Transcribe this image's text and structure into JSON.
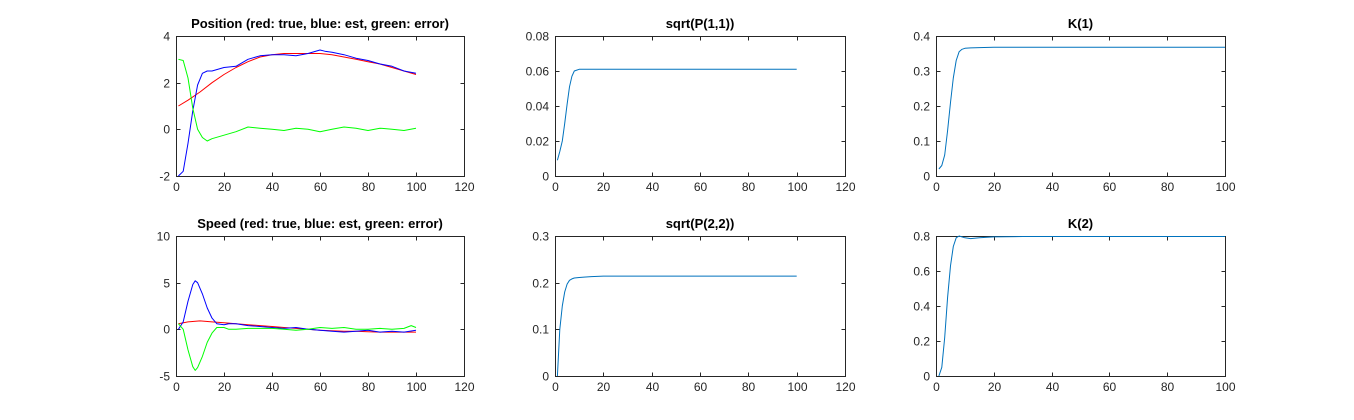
{
  "chart_data": [
    {
      "type": "line",
      "title": "Position (red: true, blue: est, green: error)",
      "xlim": [
        0,
        120
      ],
      "ylim": [
        -2,
        4
      ],
      "xticks": [
        0,
        20,
        40,
        60,
        80,
        100,
        120
      ],
      "yticks": [
        -2,
        0,
        2,
        4
      ],
      "series": [
        {
          "color": "#ff0000",
          "x": [
            1,
            5,
            10,
            15,
            20,
            25,
            30,
            35,
            40,
            45,
            50,
            55,
            60,
            65,
            70,
            75,
            80,
            85,
            90,
            95,
            100
          ],
          "y": [
            1.0,
            1.25,
            1.6,
            2.0,
            2.35,
            2.65,
            2.9,
            3.1,
            3.2,
            3.25,
            3.25,
            3.25,
            3.25,
            3.2,
            3.1,
            3.0,
            2.9,
            2.8,
            2.65,
            2.5,
            2.35
          ]
        },
        {
          "color": "#0000ff",
          "x": [
            1,
            3,
            5,
            7,
            9,
            11,
            13,
            15,
            20,
            25,
            30,
            35,
            40,
            45,
            50,
            55,
            60,
            62,
            65,
            70,
            75,
            80,
            85,
            90,
            95,
            100
          ],
          "y": [
            -2.0,
            -1.8,
            -0.6,
            0.8,
            1.9,
            2.4,
            2.5,
            2.5,
            2.65,
            2.7,
            3.0,
            3.15,
            3.2,
            3.2,
            3.15,
            3.25,
            3.4,
            3.35,
            3.3,
            3.2,
            3.05,
            2.95,
            2.8,
            2.7,
            2.5,
            2.4
          ]
        },
        {
          "color": "#00ff00",
          "x": [
            1,
            3,
            5,
            7,
            9,
            11,
            13,
            15,
            20,
            25,
            30,
            35,
            40,
            45,
            50,
            55,
            60,
            65,
            70,
            75,
            80,
            85,
            90,
            95,
            100
          ],
          "y": [
            3.0,
            2.95,
            2.2,
            0.9,
            0.0,
            -0.35,
            -0.5,
            -0.4,
            -0.25,
            -0.1,
            0.1,
            0.05,
            0.0,
            -0.05,
            0.05,
            0.0,
            -0.1,
            0.0,
            0.1,
            0.05,
            -0.05,
            0.05,
            0.0,
            -0.05,
            0.05
          ]
        }
      ]
    },
    {
      "type": "line",
      "title": "sqrt(P(1,1))",
      "xlim": [
        0,
        120
      ],
      "ylim": [
        0,
        0.08
      ],
      "xticks": [
        0,
        20,
        40,
        60,
        80,
        100,
        120
      ],
      "yticks": [
        0,
        0.02,
        0.04,
        0.06,
        0.08
      ],
      "series": [
        {
          "color": "#0072bd",
          "x": [
            1,
            2,
            3,
            4,
            5,
            6,
            7,
            8,
            9,
            10,
            12,
            15,
            20,
            30,
            50,
            70,
            100
          ],
          "y": [
            0.009,
            0.014,
            0.02,
            0.03,
            0.041,
            0.051,
            0.057,
            0.06,
            0.0605,
            0.061,
            0.061,
            0.061,
            0.061,
            0.061,
            0.061,
            0.061,
            0.061
          ]
        }
      ]
    },
    {
      "type": "line",
      "title": "K(1)",
      "xlim": [
        0,
        100
      ],
      "ylim": [
        0,
        0.4
      ],
      "xticks": [
        0,
        20,
        40,
        60,
        80,
        100
      ],
      "yticks": [
        0,
        0.1,
        0.2,
        0.3,
        0.4
      ],
      "series": [
        {
          "color": "#0072bd",
          "x": [
            1,
            2,
            3,
            4,
            5,
            6,
            7,
            8,
            9,
            10,
            12,
            15,
            20,
            30,
            50,
            70,
            100
          ],
          "y": [
            0.02,
            0.03,
            0.06,
            0.13,
            0.21,
            0.28,
            0.33,
            0.355,
            0.362,
            0.365,
            0.366,
            0.367,
            0.368,
            0.368,
            0.368,
            0.368,
            0.368
          ]
        }
      ]
    },
    {
      "type": "line",
      "title": "Speed (red: true, blue: est, green: error)",
      "xlim": [
        0,
        120
      ],
      "ylim": [
        -5,
        10
      ],
      "xticks": [
        0,
        20,
        40,
        60,
        80,
        100,
        120
      ],
      "yticks": [
        -5,
        0,
        5,
        10
      ],
      "series": [
        {
          "color": "#ff0000",
          "x": [
            1,
            5,
            10,
            15,
            20,
            25,
            30,
            35,
            40,
            45,
            50,
            55,
            60,
            65,
            70,
            75,
            80,
            85,
            90,
            95,
            100
          ],
          "y": [
            0.6,
            0.8,
            0.9,
            0.8,
            0.7,
            0.6,
            0.5,
            0.4,
            0.3,
            0.2,
            0.1,
            0.0,
            -0.1,
            -0.15,
            -0.2,
            -0.2,
            -0.25,
            -0.3,
            -0.3,
            -0.3,
            -0.3
          ]
        },
        {
          "color": "#0000ff",
          "x": [
            1,
            3,
            5,
            7,
            8,
            9,
            11,
            13,
            15,
            17,
            20,
            22,
            25,
            30,
            35,
            40,
            45,
            50,
            55,
            60,
            65,
            70,
            75,
            80,
            85,
            90,
            95,
            100
          ],
          "y": [
            0.0,
            0.8,
            3.0,
            4.8,
            5.2,
            5.0,
            3.8,
            2.3,
            1.2,
            0.6,
            0.5,
            0.6,
            0.6,
            0.4,
            0.3,
            0.2,
            0.1,
            0.2,
            0.0,
            -0.1,
            -0.2,
            -0.3,
            -0.2,
            -0.1,
            -0.3,
            -0.2,
            -0.3,
            -0.1
          ]
        },
        {
          "color": "#00ff00",
          "x": [
            1,
            3,
            5,
            7,
            8,
            9,
            11,
            13,
            15,
            17,
            20,
            22,
            25,
            30,
            35,
            40,
            45,
            50,
            55,
            60,
            65,
            70,
            75,
            80,
            85,
            90,
            95,
            98,
            100
          ],
          "y": [
            0.6,
            0.0,
            -2.2,
            -4.0,
            -4.4,
            -4.1,
            -2.9,
            -1.4,
            -0.4,
            0.2,
            0.2,
            0.0,
            0.0,
            0.1,
            0.1,
            0.1,
            0.0,
            -0.1,
            0.0,
            0.2,
            0.1,
            0.2,
            0.0,
            0.0,
            0.1,
            0.0,
            0.1,
            0.4,
            0.2
          ]
        }
      ]
    },
    {
      "type": "line",
      "title": "sqrt(P(2,2))",
      "xlim": [
        0,
        120
      ],
      "ylim": [
        0,
        0.3
      ],
      "xticks": [
        0,
        20,
        40,
        60,
        80,
        100,
        120
      ],
      "yticks": [
        0,
        0.1,
        0.2,
        0.3
      ],
      "series": [
        {
          "color": "#0072bd",
          "x": [
            1,
            2,
            3,
            4,
            5,
            6,
            7,
            8,
            10,
            12,
            15,
            20,
            30,
            50,
            70,
            100
          ],
          "y": [
            0.0,
            0.1,
            0.15,
            0.18,
            0.197,
            0.205,
            0.208,
            0.21,
            0.211,
            0.212,
            0.213,
            0.214,
            0.214,
            0.214,
            0.214,
            0.214
          ]
        }
      ]
    },
    {
      "type": "line",
      "title": "K(2)",
      "xlim": [
        0,
        100
      ],
      "ylim": [
        0,
        0.8
      ],
      "xticks": [
        0,
        20,
        40,
        60,
        80,
        100
      ],
      "yticks": [
        0,
        0.2,
        0.4,
        0.6,
        0.8
      ],
      "series": [
        {
          "color": "#0072bd",
          "x": [
            1,
            2,
            3,
            4,
            5,
            6,
            7,
            8,
            10,
            12,
            15,
            20,
            30,
            50,
            70,
            100
          ],
          "y": [
            0.0,
            0.05,
            0.22,
            0.45,
            0.63,
            0.74,
            0.79,
            0.8,
            0.79,
            0.785,
            0.79,
            0.795,
            0.797,
            0.797,
            0.797,
            0.797
          ]
        }
      ]
    }
  ]
}
